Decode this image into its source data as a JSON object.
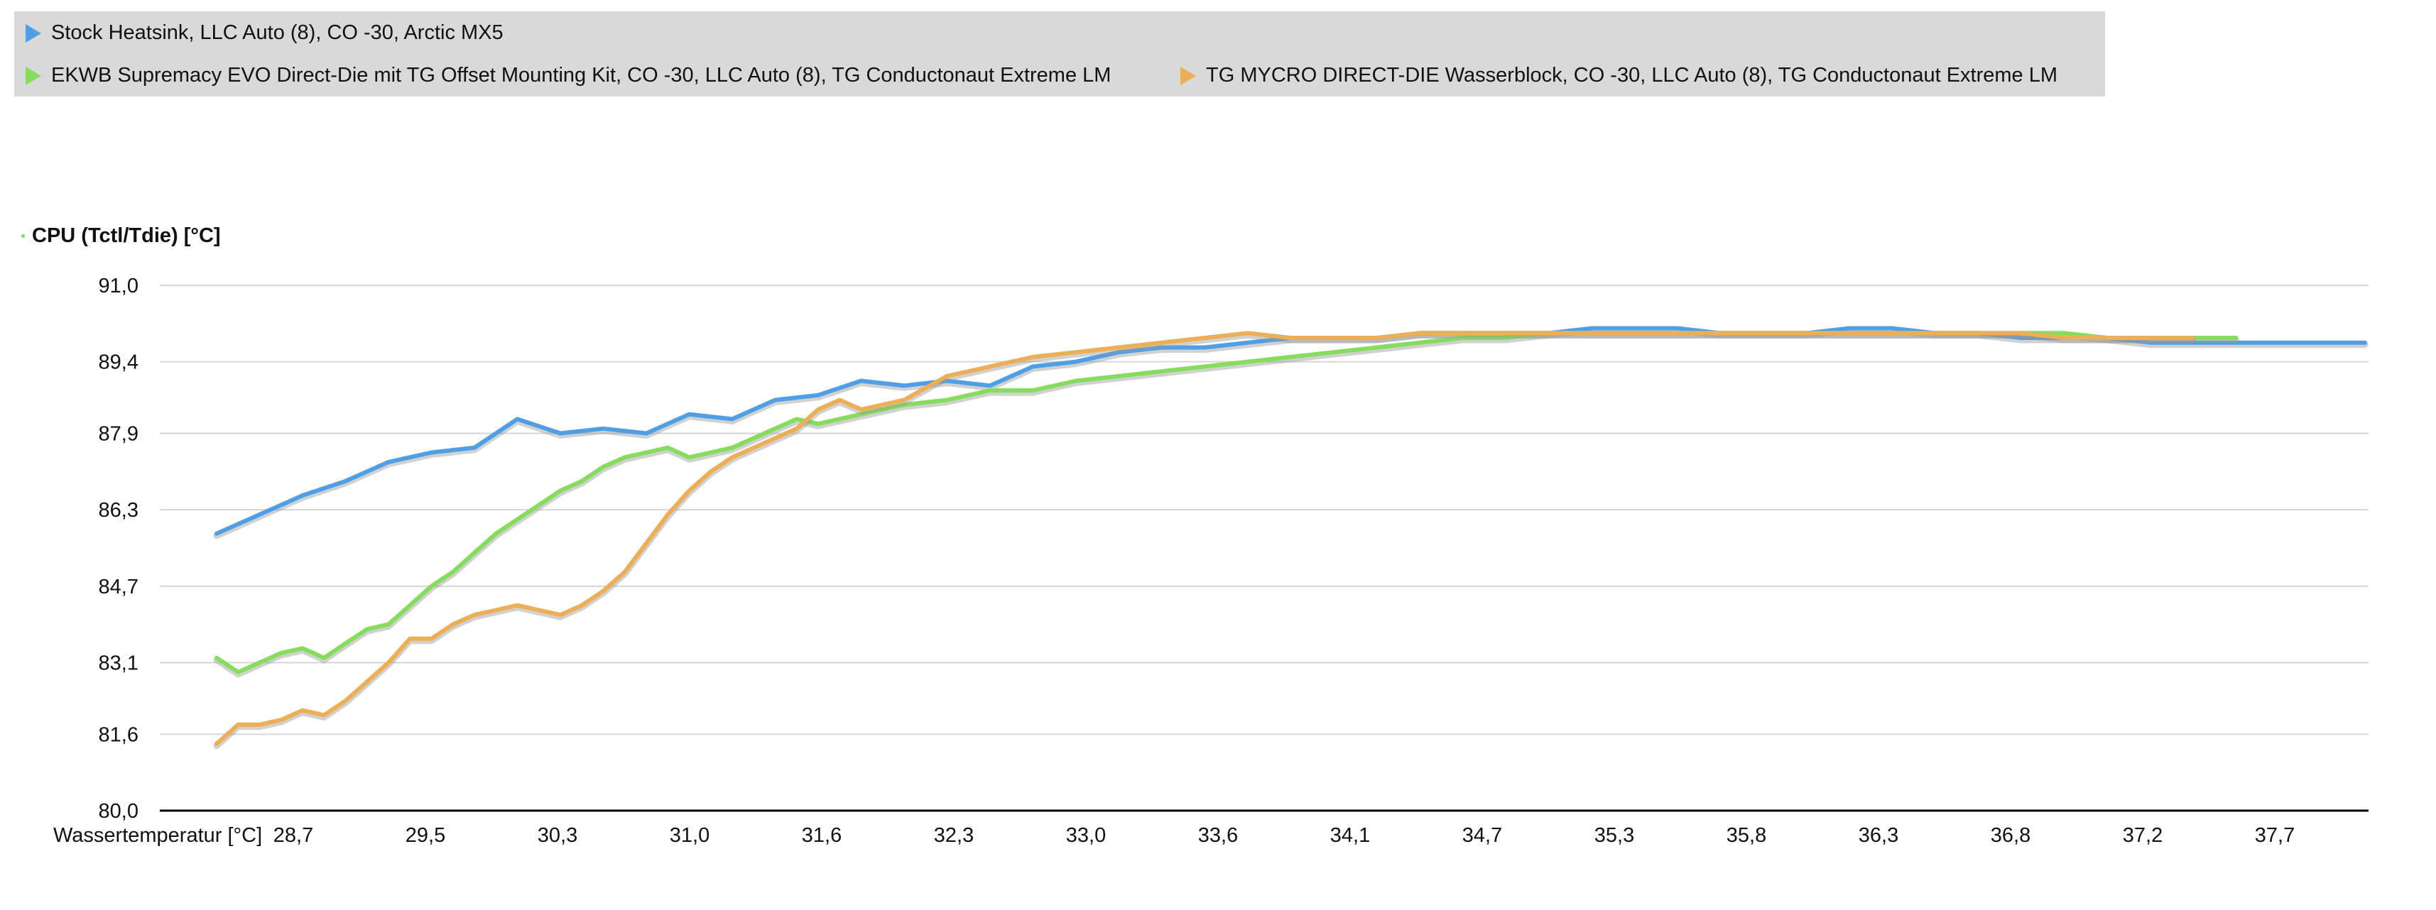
{
  "colors": {
    "stock": "#4f9fe6",
    "ekwb": "#86dc5c",
    "tg": "#ecae56",
    "grid": "#d6d6d6",
    "axis": "#000000",
    "legend_bg": "#d9d9d9"
  },
  "legend": {
    "items": [
      {
        "label": "Stock Heatsink, LLC Auto (8), CO -30, Arctic MX5",
        "icon": "triangle-right-marker"
      },
      {
        "label": "EKWB Supremacy EVO Direct-Die mit TG Offset Mounting Kit, CO -30, LLC Auto (8), TG Conductonaut Extreme LM",
        "icon": "triangle-right-marker"
      },
      {
        "label": "TG MYCRO DIRECT-DIE Wasserblock, CO -30, LLC Auto (8), TG Conductonaut Extreme LM",
        "icon": "triangle-right-marker"
      }
    ]
  },
  "chart_data": {
    "type": "line",
    "ylabel": "CPU (Tctl/Tdie) [°C]",
    "xlabel": "Wassertemperatur [°C]",
    "ylim": [
      80.0,
      91.0
    ],
    "y_ticks": [
      "91,0",
      "89,4",
      "87,9",
      "86,3",
      "84,7",
      "83,1",
      "81,6",
      "80,0"
    ],
    "y_tick_values": [
      91.0,
      89.4,
      87.9,
      86.3,
      84.7,
      83.1,
      81.6,
      80.0
    ],
    "x_ticks": [
      "28,7",
      "29,5",
      "30,3",
      "31,0",
      "31,6",
      "32,3",
      "33,0",
      "33,6",
      "34,1",
      "34,7",
      "35,3",
      "35,8",
      "36,3",
      "36,8",
      "37,2",
      "37,7"
    ],
    "xlim": [
      0,
      100
    ],
    "grid": "horizontal",
    "legend_position": "top-left",
    "series": [
      {
        "name": "Stock Heatsink, LLC Auto (8), CO -30, Arctic MX5",
        "color": "#4f9fe6",
        "x": [
          0,
          2,
          4,
          6,
          8,
          10,
          12,
          14,
          16,
          18,
          20,
          22,
          24,
          26,
          28,
          30,
          32,
          34,
          36,
          38,
          40,
          42,
          44,
          46,
          48,
          50,
          52,
          54,
          56,
          58,
          60,
          62,
          64,
          66,
          68,
          70,
          72,
          74,
          76,
          78,
          80,
          82,
          84,
          86,
          88,
          90,
          92,
          94,
          96,
          98,
          100
        ],
        "y": [
          85.8,
          86.2,
          86.6,
          86.9,
          87.3,
          87.5,
          87.6,
          88.2,
          87.9,
          88.0,
          87.9,
          88.3,
          88.2,
          88.6,
          88.7,
          89.0,
          88.9,
          89.0,
          88.9,
          89.3,
          89.4,
          89.6,
          89.7,
          89.7,
          89.8,
          89.9,
          89.9,
          89.9,
          90.0,
          90.0,
          90.0,
          90.0,
          90.1,
          90.1,
          90.1,
          90.0,
          90.0,
          90.0,
          90.1,
          90.1,
          90.0,
          90.0,
          89.9,
          89.9,
          89.9,
          89.8,
          89.8,
          89.8,
          89.8,
          89.8,
          89.8
        ]
      },
      {
        "name": "EKWB Supremacy EVO Direct-Die mit TG Offset Mounting Kit, CO -30, LLC Auto (8), TG Conductonaut Extreme LM",
        "color": "#86dc5c",
        "x": [
          0,
          1,
          2,
          3,
          4,
          5,
          6,
          7,
          8,
          9,
          10,
          11,
          12,
          13,
          14,
          15,
          16,
          17,
          18,
          19,
          20,
          21,
          22,
          23,
          24,
          25,
          26,
          27,
          28,
          30,
          32,
          34,
          36,
          38,
          40,
          42,
          44,
          46,
          48,
          50,
          52,
          54,
          56,
          58,
          60,
          62,
          64,
          66,
          68,
          70,
          72,
          74,
          76,
          78,
          80,
          82,
          84,
          86,
          88,
          90,
          92,
          94
        ],
        "y": [
          83.2,
          82.9,
          83.1,
          83.3,
          83.4,
          83.2,
          83.5,
          83.8,
          83.9,
          84.3,
          84.7,
          85.0,
          85.4,
          85.8,
          86.1,
          86.4,
          86.7,
          86.9,
          87.2,
          87.4,
          87.5,
          87.6,
          87.4,
          87.5,
          87.6,
          87.8,
          88.0,
          88.2,
          88.1,
          88.3,
          88.5,
          88.6,
          88.8,
          88.8,
          89.0,
          89.1,
          89.2,
          89.3,
          89.4,
          89.5,
          89.6,
          89.7,
          89.8,
          89.9,
          89.9,
          90.0,
          90.0,
          90.0,
          90.0,
          90.0,
          90.0,
          90.0,
          90.0,
          90.0,
          90.0,
          90.0,
          90.0,
          90.0,
          89.9,
          89.9,
          89.9,
          89.9
        ]
      },
      {
        "name": "TG MYCRO DIRECT-DIE Wasserblock, CO -30, LLC Auto (8), TG Conductonaut Extreme LM",
        "color": "#ecae56",
        "x": [
          0,
          1,
          2,
          3,
          4,
          5,
          6,
          7,
          8,
          9,
          10,
          11,
          12,
          13,
          14,
          15,
          16,
          17,
          18,
          19,
          20,
          21,
          22,
          23,
          24,
          25,
          26,
          27,
          28,
          29,
          30,
          32,
          34,
          36,
          38,
          40,
          42,
          44,
          46,
          48,
          50,
          52,
          54,
          56,
          58,
          60,
          62,
          64,
          66,
          68,
          70,
          72,
          74,
          76,
          78,
          80,
          82,
          84,
          86,
          88,
          90,
          92
        ],
        "y": [
          81.4,
          81.8,
          81.8,
          81.9,
          82.1,
          82.0,
          82.3,
          82.7,
          83.1,
          83.6,
          83.6,
          83.9,
          84.1,
          84.2,
          84.3,
          84.2,
          84.1,
          84.3,
          84.6,
          85.0,
          85.6,
          86.2,
          86.7,
          87.1,
          87.4,
          87.6,
          87.8,
          88.0,
          88.4,
          88.6,
          88.4,
          88.6,
          89.1,
          89.3,
          89.5,
          89.6,
          89.7,
          89.8,
          89.9,
          90.0,
          89.9,
          89.9,
          89.9,
          90.0,
          90.0,
          90.0,
          90.0,
          90.0,
          90.0,
          90.0,
          90.0,
          90.0,
          90.0,
          90.0,
          90.0,
          90.0,
          90.0,
          90.0,
          89.9,
          89.9,
          89.9,
          89.9
        ]
      }
    ]
  }
}
